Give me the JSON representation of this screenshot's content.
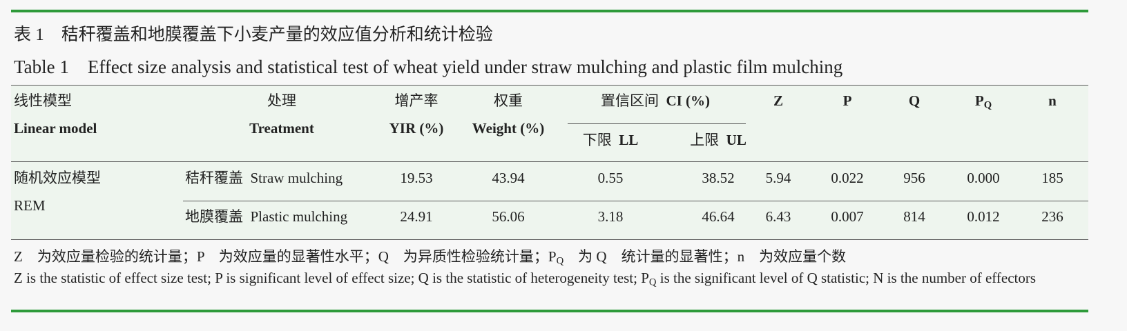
{
  "caption": {
    "label_zh": "表 1",
    "title_zh": "秸秆覆盖和地膜覆盖下小麦产量的效应值分析和统计检验",
    "label_en": "Table 1",
    "title_en": "Effect size analysis and statistical test of wheat yield under straw mulching and plastic film mulching"
  },
  "header": {
    "model": {
      "zh": "线性模型",
      "en": "Linear model"
    },
    "treatment": {
      "zh": "处理",
      "en": "Treatment"
    },
    "yir": {
      "zh": "增产率",
      "en": "YIR (%)"
    },
    "weight": {
      "zh": "权重",
      "en": "Weight (%)"
    },
    "ci": {
      "zh": "置信区间",
      "en": "CI (%)",
      "ll_zh": "下限",
      "ll_en": "LL",
      "ul_zh": "上限",
      "ul_en": "UL"
    },
    "z": "Z",
    "p": "P",
    "q": "Q",
    "pq": {
      "main": "P",
      "sub": "Q"
    },
    "n": "n"
  },
  "table": {
    "model": {
      "zh": "随机效应模型",
      "en": "REM"
    },
    "rows": [
      {
        "treatment_zh": "秸秆覆盖",
        "treatment_en": "Straw mulching",
        "cells": [
          "19.53",
          "43.94",
          "0.55",
          "38.52",
          "5.94",
          "0.022",
          "956",
          "0.000",
          "185"
        ]
      },
      {
        "treatment_zh": "地膜覆盖",
        "treatment_en": "Plastic mulching",
        "cells": [
          "24.91",
          "56.06",
          "3.18",
          "46.64",
          "6.43",
          "0.007",
          "814",
          "0.012",
          "236"
        ]
      }
    ]
  },
  "notes": {
    "zh": [
      "Z　为效应量检验的统计量；P　为效应量的显著性水平；Q　为异质性检验统计量；P",
      "Q",
      "　为 Q　统计量的显著性；n　为效应量个数"
    ],
    "en": [
      "Z is the statistic of effect size test; P is significant level of effect size; Q is the statistic of heterogeneity test; P",
      "Q",
      " is the significant level of Q statistic; N is the number of effectors"
    ]
  }
}
